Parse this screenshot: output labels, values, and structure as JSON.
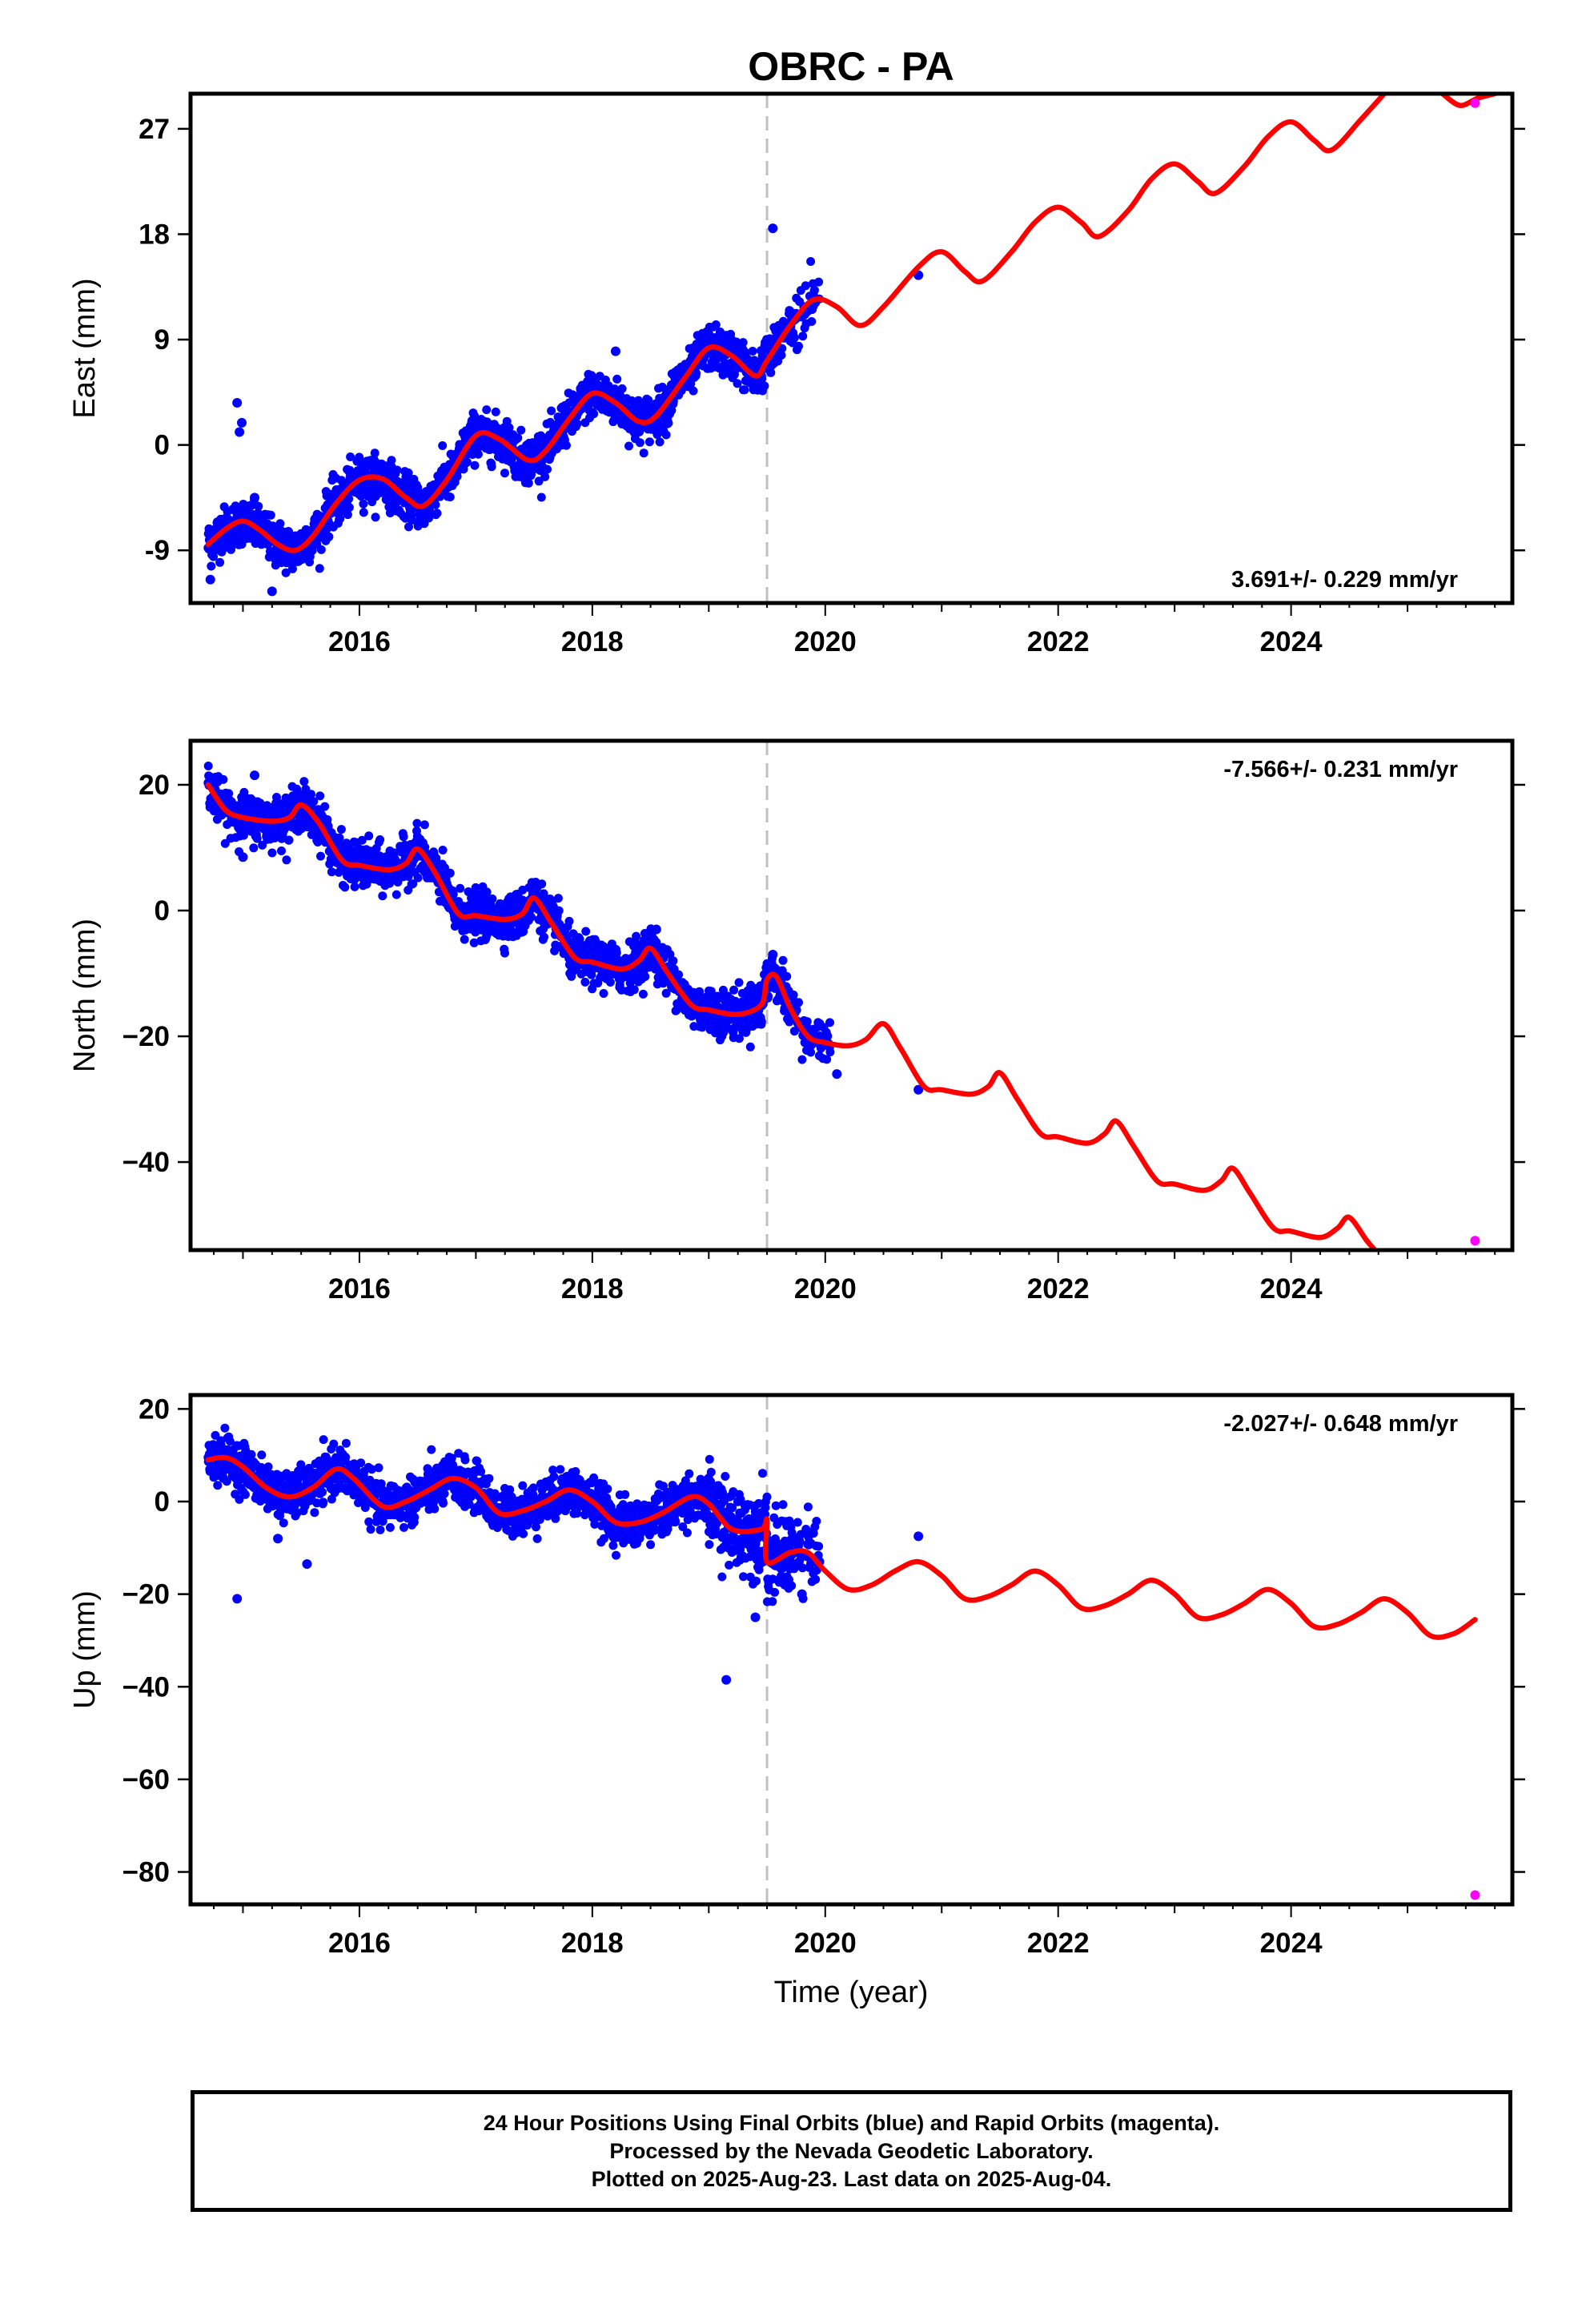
{
  "title": "OBRC - PA",
  "xlabel": "Time (year)",
  "colors": {
    "final": "#0000ff",
    "rapid": "#ff00ff",
    "model": "#ff0000",
    "break": "#c0c0c0"
  },
  "footer": {
    "line1": "24 Hour Positions Using Final Orbits (blue) and Rapid Orbits (magenta).",
    "line2": "Processed by the Nevada Geodetic Laboratory.",
    "line3": "Plotted on 2025-Aug-23. Last data on 2025-Aug-04."
  },
  "chart_data": [
    {
      "type": "scatter",
      "component": "east",
      "ylabel": "East (mm)",
      "xlim": [
        2014.55,
        2025.9
      ],
      "ylim": [
        -13.5,
        30
      ],
      "x_ticks": [
        2016,
        2018,
        2020,
        2022,
        2024
      ],
      "x_tick_labels": [
        "2016",
        "2018",
        "2020",
        "2022",
        "2024"
      ],
      "y_ticks": [
        -9,
        0,
        9,
        18,
        27
      ],
      "y_tick_labels": [
        "-9",
        "0",
        "9",
        "18",
        "27"
      ],
      "rate": "3.691+/- 0.229 mm/yr",
      "break_year": 2019.5,
      "model_anchors": [
        [
          2014.7,
          -8.5
        ],
        [
          2014.85,
          -7.2
        ],
        [
          2015.0,
          -6.5
        ],
        [
          2015.15,
          -7.3
        ],
        [
          2015.3,
          -8.5
        ],
        [
          2015.45,
          -9.0
        ],
        [
          2015.6,
          -7.8
        ],
        [
          2015.8,
          -5.0
        ],
        [
          2016.0,
          -3.0
        ],
        [
          2016.2,
          -2.9
        ],
        [
          2016.4,
          -4.5
        ],
        [
          2016.55,
          -5.2
        ],
        [
          2016.75,
          -3.0
        ],
        [
          2017.0,
          0.8
        ],
        [
          2017.2,
          0.5
        ],
        [
          2017.45,
          -1.3
        ],
        [
          2017.6,
          -0.5
        ],
        [
          2017.8,
          2.2
        ],
        [
          2018.0,
          4.4
        ],
        [
          2018.2,
          3.6
        ],
        [
          2018.4,
          2.0
        ],
        [
          2018.55,
          2.5
        ],
        [
          2018.8,
          5.8
        ],
        [
          2019.0,
          8.3
        ],
        [
          2019.2,
          7.6
        ],
        [
          2019.4,
          5.9
        ],
        [
          2019.5,
          7.2
        ],
        [
          2019.7,
          10.2
        ],
        [
          2019.9,
          12.4
        ],
        [
          2020.1,
          11.8
        ],
        [
          2020.3,
          10.2
        ],
        [
          2020.5,
          11.8
        ],
        [
          2020.8,
          15.2
        ],
        [
          2021.0,
          16.5
        ],
        [
          2021.2,
          14.8
        ],
        [
          2021.35,
          14.0
        ],
        [
          2021.6,
          16.5
        ],
        [
          2021.8,
          19.0
        ],
        [
          2022.0,
          20.3
        ],
        [
          2022.2,
          19.0
        ],
        [
          2022.35,
          17.8
        ],
        [
          2022.6,
          20.0
        ],
        [
          2022.8,
          22.7
        ],
        [
          2023.0,
          24.0
        ],
        [
          2023.2,
          22.5
        ],
        [
          2023.35,
          21.5
        ],
        [
          2023.6,
          23.8
        ],
        [
          2023.8,
          26.3
        ],
        [
          2024.0,
          27.6
        ],
        [
          2024.2,
          26.0
        ],
        [
          2024.35,
          25.2
        ],
        [
          2024.6,
          27.8
        ],
        [
          2024.8,
          30.0
        ]
      ],
      "model_anchors_2": [
        [
          2025.3,
          30.0
        ],
        [
          2025.45,
          29.0
        ],
        [
          2025.6,
          29.6
        ],
        [
          2025.75,
          30.0
        ]
      ],
      "scatter_bounds": [
        [
          2014.7,
          2019.95
        ]
      ],
      "outliers": [
        [
          2014.95,
          3.6
        ],
        [
          2014.97,
          1.1
        ],
        [
          2014.99,
          1.9
        ],
        [
          2014.72,
          -11.5
        ],
        [
          2015.25,
          -12.5
        ],
        [
          2019.55,
          18.5
        ],
        [
          2020.8,
          14.5
        ],
        [
          2015.1,
          -4.5
        ],
        [
          2018.2,
          8.0
        ]
      ],
      "rapid_points": [
        [
          2025.58,
          29.2
        ]
      ]
    },
    {
      "type": "scatter",
      "component": "north",
      "ylabel": "North (mm)",
      "xlim": [
        2014.55,
        2025.9
      ],
      "ylim": [
        -54,
        27
      ],
      "x_ticks": [
        2016,
        2018,
        2020,
        2022,
        2024
      ],
      "x_tick_labels": [
        "2016",
        "2018",
        "2020",
        "2022",
        "2024"
      ],
      "y_ticks": [
        -40,
        -20,
        0,
        20
      ],
      "y_tick_labels": [
        "−40",
        "−20",
        "0",
        "20"
      ],
      "rate": "-7.566+/- 0.231 mm/yr",
      "break_year": 2019.5,
      "model_anchors": [
        [
          2014.7,
          20.0
        ],
        [
          2014.85,
          16.0
        ],
        [
          2015.0,
          14.8
        ],
        [
          2015.25,
          14.2
        ],
        [
          2015.4,
          14.8
        ],
        [
          2015.5,
          16.8
        ],
        [
          2015.65,
          14.0
        ],
        [
          2015.85,
          8.0
        ],
        [
          2016.0,
          7.2
        ],
        [
          2016.25,
          6.5
        ],
        [
          2016.4,
          7.5
        ],
        [
          2016.5,
          9.8
        ],
        [
          2016.65,
          6.0
        ],
        [
          2016.85,
          -0.5
        ],
        [
          2017.0,
          -0.8
        ],
        [
          2017.25,
          -1.4
        ],
        [
          2017.4,
          -0.5
        ],
        [
          2017.5,
          2.0
        ],
        [
          2017.65,
          -2.0
        ],
        [
          2017.85,
          -7.5
        ],
        [
          2018.0,
          -8.2
        ],
        [
          2018.25,
          -9.3
        ],
        [
          2018.4,
          -8.0
        ],
        [
          2018.5,
          -6.0
        ],
        [
          2018.65,
          -10.0
        ],
        [
          2018.85,
          -15.0
        ],
        [
          2019.0,
          -15.8
        ],
        [
          2019.25,
          -16.5
        ],
        [
          2019.45,
          -15.0
        ],
        [
          2019.5,
          -11.0
        ],
        [
          2019.58,
          -10.5
        ],
        [
          2019.7,
          -15.5
        ],
        [
          2019.85,
          -20.0
        ],
        [
          2020.0,
          -21.0
        ],
        [
          2020.2,
          -21.5
        ],
        [
          2020.35,
          -20.5
        ],
        [
          2020.5,
          -18.0
        ],
        [
          2020.65,
          -22.0
        ],
        [
          2020.85,
          -28.0
        ],
        [
          2021.0,
          -28.5
        ],
        [
          2021.25,
          -29.2
        ],
        [
          2021.4,
          -28.0
        ],
        [
          2021.5,
          -25.8
        ],
        [
          2021.65,
          -30.0
        ],
        [
          2021.85,
          -35.5
        ],
        [
          2022.0,
          -36.0
        ],
        [
          2022.25,
          -37.0
        ],
        [
          2022.4,
          -35.5
        ],
        [
          2022.5,
          -33.5
        ],
        [
          2022.65,
          -37.5
        ],
        [
          2022.85,
          -43.0
        ],
        [
          2023.0,
          -43.5
        ],
        [
          2023.25,
          -44.5
        ],
        [
          2023.4,
          -43.0
        ],
        [
          2023.5,
          -41.0
        ],
        [
          2023.65,
          -45.0
        ],
        [
          2023.85,
          -50.5
        ],
        [
          2024.0,
          -51.0
        ],
        [
          2024.25,
          -52.0
        ],
        [
          2024.4,
          -50.5
        ],
        [
          2024.5,
          -48.8
        ],
        [
          2024.65,
          -52.5
        ],
        [
          2024.72,
          -54.0
        ]
      ],
      "model_anchors_2": [],
      "scatter_bounds": [
        [
          2014.7,
          2020.05
        ]
      ],
      "outliers": [
        [
          2015.0,
          8.5
        ],
        [
          2015.1,
          21.5
        ],
        [
          2020.1,
          -26.0
        ],
        [
          2020.8,
          -28.5
        ],
        [
          2019.9,
          -19.0
        ],
        [
          2019.95,
          -18.0
        ],
        [
          2018.55,
          -3.0
        ],
        [
          2019.55,
          -7.0
        ]
      ],
      "rapid_points": [
        [
          2025.58,
          -52.5
        ]
      ]
    },
    {
      "type": "scatter",
      "component": "up",
      "ylabel": "Up (mm)",
      "xlim": [
        2014.55,
        2025.9
      ],
      "ylim": [
        -87,
        23
      ],
      "x_ticks": [
        2016,
        2018,
        2020,
        2022,
        2024
      ],
      "x_tick_labels": [
        "2016",
        "2018",
        "2020",
        "2022",
        "2024"
      ],
      "y_ticks": [
        -80,
        -60,
        -40,
        -20,
        0,
        20
      ],
      "y_tick_labels": [
        "−80",
        "−60",
        "−40",
        "−20",
        "0",
        "20"
      ],
      "rate": "-2.027+/- 0.648 mm/yr",
      "break_year": 2019.5,
      "model_anchors": [
        [
          2014.7,
          9.0
        ],
        [
          2014.85,
          9.5
        ],
        [
          2015.0,
          7.5
        ],
        [
          2015.2,
          3.0
        ],
        [
          2015.4,
          1.0
        ],
        [
          2015.6,
          3.0
        ],
        [
          2015.8,
          7.0
        ],
        [
          2015.95,
          5.0
        ],
        [
          2016.2,
          -1.0
        ],
        [
          2016.4,
          0.0
        ],
        [
          2016.6,
          2.5
        ],
        [
          2016.8,
          5.0
        ],
        [
          2017.0,
          3.0
        ],
        [
          2017.2,
          -2.5
        ],
        [
          2017.4,
          -2.0
        ],
        [
          2017.6,
          0.0
        ],
        [
          2017.8,
          2.5
        ],
        [
          2018.0,
          0.0
        ],
        [
          2018.2,
          -4.5
        ],
        [
          2018.4,
          -4.5
        ],
        [
          2018.6,
          -2.5
        ],
        [
          2018.85,
          1.0
        ],
        [
          2019.0,
          -0.5
        ],
        [
          2019.2,
          -6.0
        ],
        [
          2019.45,
          -6.0
        ],
        [
          2019.5,
          -4.0
        ],
        [
          2019.5,
          -13.0
        ],
        [
          2019.7,
          -11.0
        ],
        [
          2019.85,
          -11.0
        ],
        [
          2020.0,
          -15.0
        ],
        [
          2020.2,
          -19.0
        ],
        [
          2020.4,
          -18.0
        ],
        [
          2020.6,
          -15.0
        ],
        [
          2020.8,
          -13.0
        ],
        [
          2021.0,
          -16.0
        ],
        [
          2021.2,
          -21.0
        ],
        [
          2021.4,
          -20.5
        ],
        [
          2021.6,
          -18.0
        ],
        [
          2021.8,
          -15.0
        ],
        [
          2022.0,
          -18.0
        ],
        [
          2022.2,
          -23.0
        ],
        [
          2022.4,
          -22.5
        ],
        [
          2022.6,
          -20.0
        ],
        [
          2022.8,
          -17.0
        ],
        [
          2023.0,
          -20.0
        ],
        [
          2023.2,
          -25.0
        ],
        [
          2023.4,
          -24.5
        ],
        [
          2023.6,
          -22.0
        ],
        [
          2023.8,
          -19.0
        ],
        [
          2024.0,
          -22.0
        ],
        [
          2024.2,
          -27.0
        ],
        [
          2024.4,
          -26.5
        ],
        [
          2024.6,
          -24.0
        ],
        [
          2024.8,
          -21.0
        ],
        [
          2025.0,
          -24.0
        ],
        [
          2025.2,
          -29.0
        ],
        [
          2025.4,
          -28.5
        ],
        [
          2025.58,
          -25.5
        ]
      ],
      "model_anchors_2": [],
      "scatter_bounds": [
        [
          2014.7,
          2019.95
        ]
      ],
      "outliers": [
        [
          2014.95,
          -21.0
        ],
        [
          2015.55,
          -13.5
        ],
        [
          2019.15,
          -38.5
        ],
        [
          2020.8,
          -7.5
        ],
        [
          2019.95,
          -13.0
        ],
        [
          2015.3,
          -8.0
        ],
        [
          2019.8,
          -20.0
        ],
        [
          2019.4,
          -25.0
        ]
      ],
      "rapid_points": [
        [
          2025.58,
          -85.0
        ]
      ]
    }
  ]
}
